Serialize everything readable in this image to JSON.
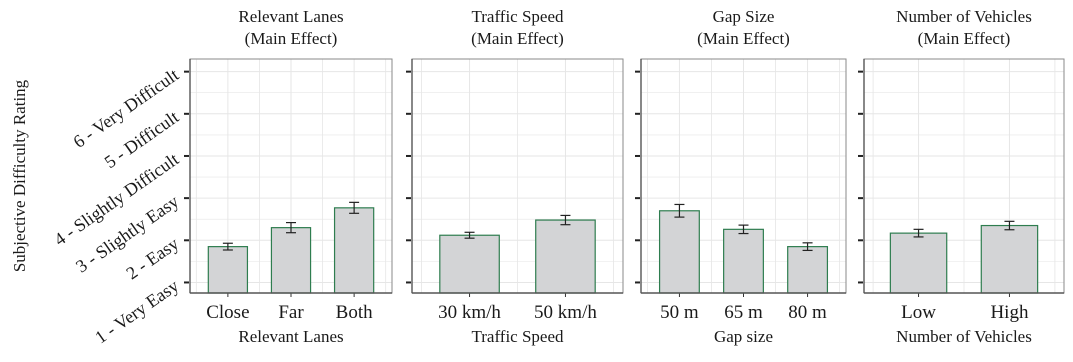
{
  "colors": {
    "bar_fill": "#d3d4d6",
    "bar_stroke": "#2e7d4f",
    "grid": "#e6e6e6",
    "frame": "#8a8a8a",
    "text": "#1a1a1a"
  },
  "chart_data": [
    {
      "type": "bar",
      "title": "Relevant Lanes",
      "subtitle": "(Main Effect)",
      "xlabel": "Relevant Lanes",
      "ylabel": "Subjective Difficulty Rating",
      "categories": [
        "Close",
        "Far",
        "Both"
      ],
      "values": [
        1.85,
        2.3,
        2.77
      ],
      "errors": [
        0.08,
        0.12,
        0.13
      ],
      "ylim": [
        0.75,
        6.3
      ],
      "y_ticks": [
        1,
        2,
        3,
        4,
        5,
        6
      ],
      "y_tick_labels": [
        "1 - Very Easy",
        "2 - Easy",
        "3 - Slightly Easy",
        "4 - Slightly Difficult",
        "5 - Difficult",
        "6 - Very Difficult"
      ],
      "grid": true
    },
    {
      "type": "bar",
      "title": "Traffic Speed",
      "subtitle": "(Main Effect)",
      "xlabel": "Traffic Speed",
      "categories": [
        "30 km/h",
        "50 km/h"
      ],
      "values": [
        2.12,
        2.48
      ],
      "errors": [
        0.07,
        0.11
      ],
      "ylim": [
        0.75,
        6.3
      ],
      "grid": true
    },
    {
      "type": "bar",
      "title": "Gap Size",
      "subtitle": "(Main Effect)",
      "xlabel": "Gap size",
      "categories": [
        "50 m",
        "65 m",
        "80 m"
      ],
      "values": [
        2.7,
        2.26,
        1.85
      ],
      "errors": [
        0.15,
        0.1,
        0.09
      ],
      "ylim": [
        0.75,
        6.3
      ],
      "grid": true
    },
    {
      "type": "bar",
      "title": "Number of Vehicles",
      "subtitle": "(Main Effect)",
      "xlabel": "Number of Vehicles",
      "categories": [
        "Low",
        "High"
      ],
      "values": [
        2.17,
        2.35
      ],
      "errors": [
        0.09,
        0.1
      ],
      "ylim": [
        0.75,
        6.3
      ],
      "grid": true
    }
  ]
}
